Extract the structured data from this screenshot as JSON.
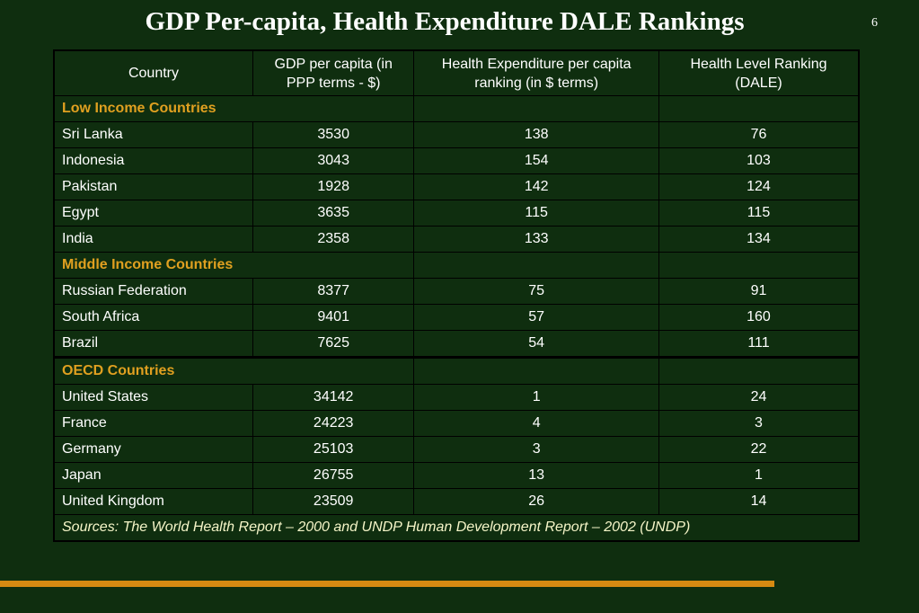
{
  "title": "GDP Per-capita, Health Expenditure DALE Rankings",
  "slide_number": "6",
  "columns": [
    "Country",
    "GDP per capita  (in PPP terms - $)",
    "Health Expenditure per capita ranking (in $ terms)",
    "Health Level Ranking (DALE)"
  ],
  "groups": [
    {
      "label": "Low Income Countries",
      "rows": [
        [
          "Sri Lanka",
          "3530",
          "138",
          "76"
        ],
        [
          "Indonesia",
          "3043",
          "154",
          "103"
        ],
        [
          "Pakistan",
          "1928",
          "142",
          "124"
        ],
        [
          "Egypt",
          "3635",
          "115",
          "115"
        ],
        [
          "India",
          "2358",
          "133",
          "134"
        ]
      ]
    },
    {
      "label": "Middle Income Countries",
      "rows": [
        [
          "Russian Federation",
          "8377",
          "75",
          "91"
        ],
        [
          "South Africa",
          "9401",
          "57",
          "160"
        ],
        [
          "Brazil",
          "7625",
          "54",
          "111"
        ]
      ]
    },
    {
      "label": "OECD Countries",
      "rows": [
        [
          "United States",
          "34142",
          "1",
          "24"
        ],
        [
          "France",
          "24223",
          "4",
          "3"
        ],
        [
          "Germany",
          "25103",
          "3",
          "22"
        ],
        [
          "Japan",
          "26755",
          "13",
          "1"
        ],
        [
          "United Kingdom",
          "23509",
          "26",
          "14"
        ]
      ]
    }
  ],
  "source": "Sources: The World Health Report – 2000 and UNDP Human Development Report – 2002 (UNDP)",
  "colors": {
    "background": "#0f2e0f",
    "accent": "#d58a12",
    "group_label": "#e0a020"
  }
}
